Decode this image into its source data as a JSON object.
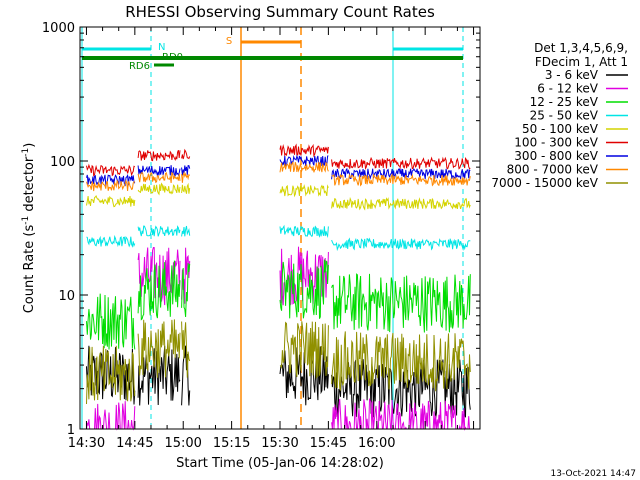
{
  "chart_data": {
    "type": "line",
    "title": "RHESSI Observing Summary Count Rates",
    "xlabel": "Start Time (05-Jan-06 14:28:02)",
    "ylabel_main": "Count Rate (s",
    "ylabel_sup1": "-1",
    "ylabel_mid": " detector",
    "ylabel_sup2": "-1",
    "ylabel_end": ")",
    "yscale": "log",
    "ylim": [
      1,
      1000
    ],
    "xlim_minutes": [
      28,
      152
    ],
    "x_ticks": [
      {
        "m": 30,
        "label": "14:30"
      },
      {
        "m": 45,
        "label": "14:45"
      },
      {
        "m": 60,
        "label": "15:00"
      },
      {
        "m": 75,
        "label": "15:15"
      },
      {
        "m": 90,
        "label": "15:30"
      },
      {
        "m": 105,
        "label": "15:45"
      },
      {
        "m": 120,
        "label": "16:00"
      }
    ],
    "y_ticks": [
      {
        "v": 1,
        "label": "1"
      },
      {
        "v": 10,
        "label": "10"
      },
      {
        "v": 100,
        "label": "100"
      },
      {
        "v": 1000,
        "label": "1000"
      }
    ],
    "legend_header": [
      "Det 1,3,4,5,6,9,",
      "FDecim 1, Att 1"
    ],
    "series": [
      {
        "name": "3 - 6 keV",
        "color": "#000000",
        "pre": 2.5,
        "mid": 2.5,
        "post": 2.5
      },
      {
        "name": "6 - 12 keV",
        "color": "#e000e0",
        "pre": 1.0,
        "mid": 14,
        "post": 14
      },
      {
        "name": "12 - 25 keV",
        "color": "#00dd00",
        "pre": 6.5,
        "mid": 11,
        "post": 11
      },
      {
        "name": "25 - 50 keV",
        "color": "#00e5e5",
        "pre": 25,
        "mid": 30,
        "post": 30
      },
      {
        "name": "50 - 100 keV",
        "color": "#d4d400",
        "pre": 50,
        "mid": 62,
        "post": 60
      },
      {
        "name": "100 - 300 keV",
        "color": "#e00000",
        "pre": 85,
        "mid": 110,
        "post": 120
      },
      {
        "name": "300 - 800 keV",
        "color": "#0000e0",
        "pre": 72,
        "mid": 85,
        "post": 100
      },
      {
        "name": "800 - 7000 keV",
        "color": "#ff8800",
        "pre": 65,
        "mid": 75,
        "post": 90
      },
      {
        "name": "7000 - 15000 keV",
        "color": "#909000",
        "pre": 2.5,
        "mid": 4,
        "post": 4
      }
    ],
    "flags": [
      {
        "label": "N",
        "color": "#00e5e5"
      },
      {
        "label": "S",
        "color": "#ff8800"
      },
      {
        "label": "RD0",
        "color": "#008800"
      },
      {
        "label": "RD6",
        "color": "#008800"
      }
    ],
    "footer_date": "13-Oct-2021 14:47"
  }
}
